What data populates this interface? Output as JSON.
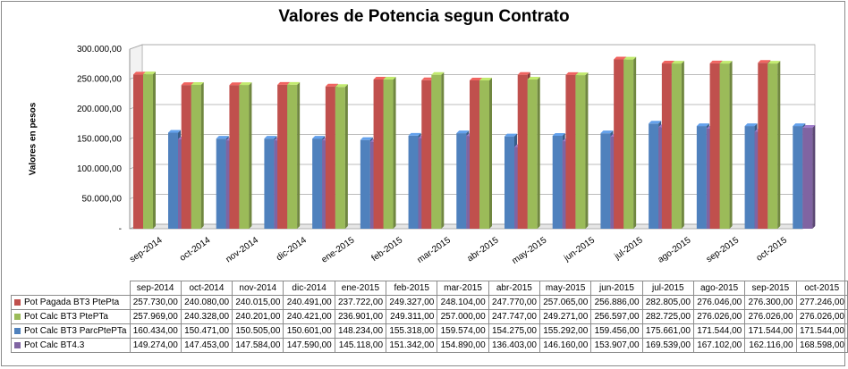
{
  "chart_data": {
    "type": "bar",
    "title": "Valores de Potencia segun Contrato",
    "ylabel": "Valores en pesos",
    "xlabel": "",
    "ylim": [
      0,
      300000
    ],
    "ytick_values": [
      0,
      50000,
      100000,
      150000,
      200000,
      250000,
      300000
    ],
    "ytick_labels": [
      "-",
      "50.000,00",
      "100.000,00",
      "150.000,00",
      "200.000,00",
      "250.000,00",
      "300.000,00"
    ],
    "grid": true,
    "legend": "data-table-below",
    "categories": [
      "sep-2014",
      "oct-2014",
      "nov-2014",
      "dic-2014",
      "ene-2015",
      "feb-2015",
      "mar-2015",
      "abr-2015",
      "may-2015",
      "jun-2015",
      "jul-2015",
      "ago-2015",
      "sep-2015",
      "oct-2015"
    ],
    "series": [
      {
        "name": "Pot Pagada BT3 PtePta",
        "color": "#c0504d",
        "values": [
          257730,
          240080,
          240015,
          240491,
          237722,
          249327,
          248104,
          247770,
          257065,
          256886,
          282805,
          276046,
          276300,
          277246
        ],
        "labels": [
          "257.730,00",
          "240.080,00",
          "240.015,00",
          "240.491,00",
          "237.722,00",
          "249.327,00",
          "248.104,00",
          "247.770,00",
          "257.065,00",
          "256.886,00",
          "282.805,00",
          "276.046,00",
          "276.300,00",
          "277.246,00"
        ]
      },
      {
        "name": "Pot Calc BT3 PtePTa",
        "color": "#9bbb59",
        "values": [
          257969,
          240328,
          240201,
          240421,
          236901,
          249311,
          257000,
          247747,
          249271,
          256597,
          282725,
          276026,
          276026,
          276026
        ],
        "labels": [
          "257.969,00",
          "240.328,00",
          "240.201,00",
          "240.421,00",
          "236.901,00",
          "249.311,00",
          "257.000,00",
          "247.747,00",
          "249.271,00",
          "256.597,00",
          "282.725,00",
          "276.026,00",
          "276.026,00",
          "276.026,00"
        ]
      },
      {
        "name": "Pot Calc BT3 ParcPtePTa",
        "color": "#4f81bd",
        "values": [
          160434,
          150471,
          150505,
          150601,
          148234,
          155318,
          159574,
          154275,
          155292,
          159456,
          175661,
          171544,
          171544,
          171544
        ],
        "labels": [
          "160.434,00",
          "150.471,00",
          "150.505,00",
          "150.601,00",
          "148.234,00",
          "155.318,00",
          "159.574,00",
          "154.275,00",
          "155.292,00",
          "159.456,00",
          "175.661,00",
          "171.544,00",
          "171.544,00",
          "171.544,00"
        ]
      },
      {
        "name": "Pot Calc BT4.3",
        "color": "#8064a2",
        "values": [
          149274,
          147453,
          147584,
          147590,
          145118,
          151342,
          154890,
          136403,
          146160,
          153907,
          169539,
          167102,
          162116,
          168598
        ],
        "labels": [
          "149.274,00",
          "147.453,00",
          "147.584,00",
          "147.590,00",
          "145.118,00",
          "151.342,00",
          "154.890,00",
          "136.403,00",
          "146.160,00",
          "153.907,00",
          "169.539,00",
          "167.102,00",
          "162.116,00",
          "168.598,00"
        ]
      }
    ]
  }
}
